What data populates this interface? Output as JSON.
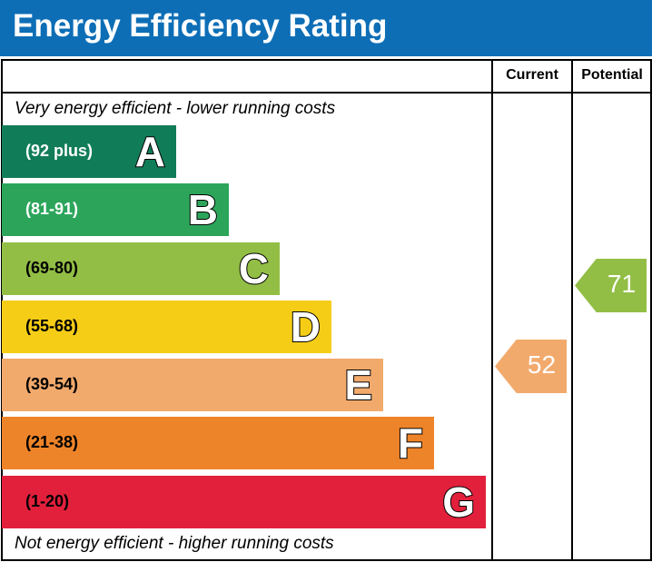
{
  "title": "Energy Efficiency Rating",
  "columns": {
    "current": "Current",
    "potential": "Potential"
  },
  "top_note": "Very energy efficient - lower running costs",
  "bottom_note": "Not energy efficient - higher running costs",
  "chart_data": {
    "type": "bar",
    "title": "Energy Efficiency Rating",
    "bands": [
      {
        "letter": "A",
        "range": "(92 plus)",
        "color": "#117d58"
      },
      {
        "letter": "B",
        "range": "(81-91)",
        "color": "#2ca55b"
      },
      {
        "letter": "C",
        "range": "(69-80)",
        "color": "#92be45"
      },
      {
        "letter": "D",
        "range": "(55-68)",
        "color": "#f5cd17"
      },
      {
        "letter": "E",
        "range": "(39-54)",
        "color": "#f2aa6c"
      },
      {
        "letter": "F",
        "range": "(21-38)",
        "color": "#ee8429"
      },
      {
        "letter": "G",
        "range": "(1-20)",
        "color": "#e2203c"
      }
    ],
    "current": {
      "value": 52,
      "band": "E",
      "color": "#f2aa6c"
    },
    "potential": {
      "value": 71,
      "band": "C",
      "color": "#92be45"
    }
  }
}
